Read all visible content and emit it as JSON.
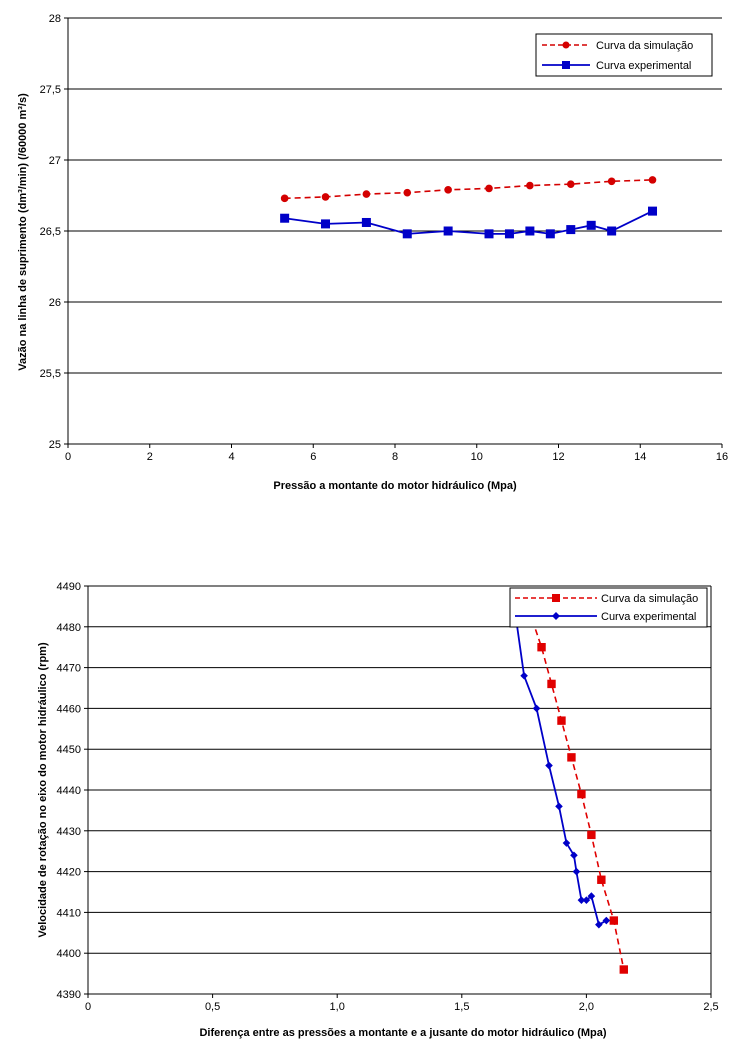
{
  "chart_data": [
    {
      "type": "line",
      "xlabel": "Pressão a montante do motor hidráulico (Mpa)",
      "ylabel": "Vazão na linha de suprimento (dm³/min) (/60000 m³/s)",
      "xlim": [
        0,
        16
      ],
      "ylim": [
        25,
        28
      ],
      "xticks": [
        0,
        2,
        4,
        6,
        8,
        10,
        12,
        14,
        16
      ],
      "xtick_labels": [
        "0",
        "2",
        "4",
        "6",
        "8",
        "10",
        "12",
        "14",
        "16"
      ],
      "yticks": [
        25,
        25.5,
        26,
        26.5,
        27,
        27.5,
        28
      ],
      "ytick_labels": [
        "25",
        "25,5",
        "26",
        "26,5",
        "27",
        "27,5",
        "28"
      ],
      "grid": "horizontal",
      "legend_position": "top-right",
      "series": [
        {
          "name": "Curva da simulação",
          "color": "#d40000",
          "line": "dashed",
          "marker": "circle",
          "x": [
            5.3,
            6.3,
            7.3,
            8.3,
            9.3,
            10.3,
            11.3,
            12.3,
            13.3,
            14.3
          ],
          "y": [
            26.73,
            26.74,
            26.76,
            26.77,
            26.79,
            26.8,
            26.82,
            26.83,
            26.85,
            26.86
          ]
        },
        {
          "name": "Curva experimental",
          "color": "#0000c8",
          "line": "solid",
          "marker": "square",
          "x": [
            5.3,
            6.3,
            7.3,
            8.3,
            9.3,
            10.3,
            10.8,
            11.3,
            11.8,
            12.3,
            12.8,
            13.3,
            14.3
          ],
          "y": [
            26.59,
            26.55,
            26.56,
            26.48,
            26.5,
            26.48,
            26.48,
            26.5,
            26.48,
            26.51,
            26.54,
            26.5,
            26.64
          ]
        }
      ]
    },
    {
      "type": "line",
      "xlabel": "Diferença entre as pressões a montante e a jusante do motor hidráulico (Mpa)",
      "ylabel": "Velocidade de rotação no eixo do motor hidráulico (rpm)",
      "xlim": [
        0,
        2.5
      ],
      "ylim": [
        4390,
        4490
      ],
      "xticks": [
        0,
        0.5,
        1.0,
        1.5,
        2.0,
        2.5
      ],
      "xtick_labels": [
        "0",
        "0,5",
        "1,0",
        "1,5",
        "2,0",
        "2,5"
      ],
      "yticks": [
        4390,
        4400,
        4410,
        4420,
        4430,
        4440,
        4450,
        4460,
        4470,
        4480,
        4490
      ],
      "ytick_labels": [
        "4390",
        "4400",
        "4410",
        "4420",
        "4430",
        "4440",
        "4450",
        "4460",
        "4470",
        "4480",
        "4490"
      ],
      "grid": "horizontal",
      "legend_position": "top-right",
      "series": [
        {
          "name": "Curva da simulação",
          "color": "#e00000",
          "line": "dashed",
          "marker": "square",
          "x": [
            1.77,
            1.82,
            1.86,
            1.9,
            1.94,
            1.98,
            2.02,
            2.06,
            2.11,
            2.15
          ],
          "y": [
            4484,
            4475,
            4466,
            4457,
            4448,
            4439,
            4429,
            4418,
            4408,
            4396
          ]
        },
        {
          "name": "Curva experimental",
          "color": "#0000c8",
          "line": "solid",
          "marker": "diamond",
          "x": [
            1.72,
            1.75,
            1.8,
            1.85,
            1.89,
            1.92,
            1.95,
            1.96,
            1.98,
            2.0,
            2.02,
            2.05,
            2.08
          ],
          "y": [
            4481,
            4468,
            4460,
            4446,
            4436,
            4427,
            4424,
            4420,
            4413,
            4413,
            4414,
            4407,
            4408
          ]
        }
      ]
    }
  ]
}
